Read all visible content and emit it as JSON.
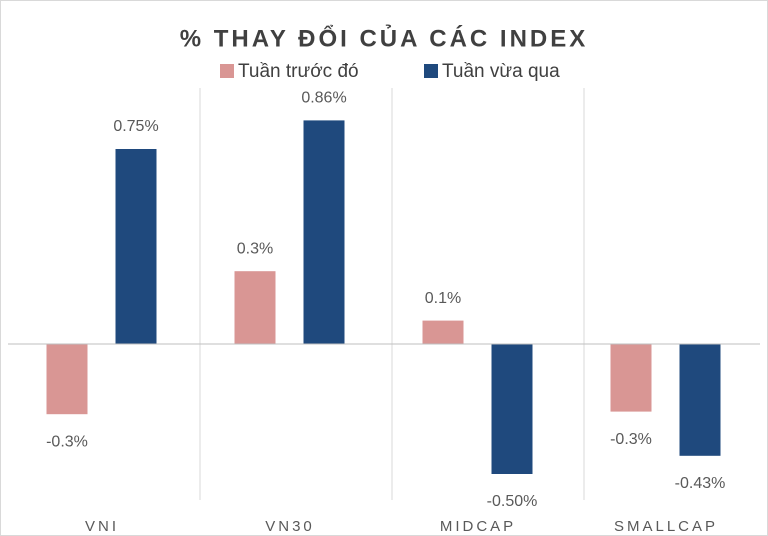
{
  "chart_data": {
    "type": "bar",
    "title": "% THAY ĐỔI CỦA CÁC INDEX",
    "categories": [
      "VNI",
      "VN30",
      "MIDCAP",
      "SMALLCAP"
    ],
    "series": [
      {
        "name": "Tuần trước đó",
        "color": "#d99694",
        "values": [
          -0.27,
          0.28,
          0.09,
          -0.26
        ],
        "value_labels": [
          "-0.3%",
          "0.3%",
          "0.1%",
          "-0.3%"
        ]
      },
      {
        "name": "Tuần vừa qua",
        "color": "#1f497d",
        "values": [
          0.75,
          0.86,
          -0.5,
          -0.43
        ],
        "value_labels": [
          "0.75%",
          "0.86%",
          "-0.50%",
          "-0.43%"
        ]
      }
    ],
    "ylim": [
      -0.55,
      0.95
    ],
    "legend": "top"
  }
}
